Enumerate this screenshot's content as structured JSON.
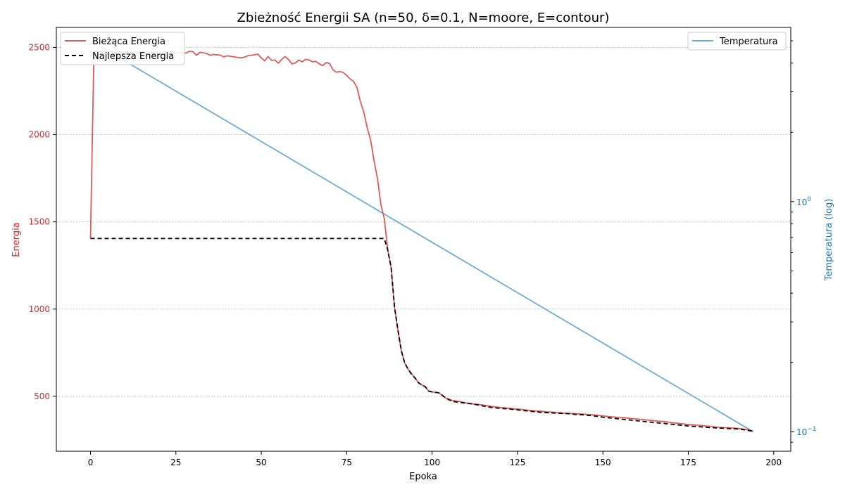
{
  "chart_data": {
    "type": "line",
    "title": "Zbieżność Energii SA (n=50, δ=0.1, N=moore, E=contour)",
    "xlabel": "Epoka",
    "ylabel_left": "Energia",
    "ylabel_right": "Temperatura (log)",
    "xlim": [
      -10,
      205
    ],
    "ylim_left": [
      185,
      2615
    ],
    "ylim_right_log10": [
      -1.085,
      0.757
    ],
    "x_ticks": [
      0,
      25,
      50,
      75,
      100,
      125,
      150,
      175,
      200
    ],
    "x_tick_labels": [
      "0",
      "25",
      "50",
      "75",
      "100",
      "125",
      "150",
      "175",
      "200"
    ],
    "y_ticks_left": [
      500,
      1000,
      1500,
      2000,
      2500
    ],
    "y_tick_labels_left": [
      "500",
      "1000",
      "1500",
      "2000",
      "2500"
    ],
    "y_ticks_right": [
      0.1,
      1
    ],
    "y_tick_labels_right": [
      {
        "base": "10",
        "exp": "−1"
      },
      {
        "base": "10",
        "exp": "0"
      }
    ],
    "grid": "y-dotted",
    "colors": {
      "current": "#e05a5a",
      "best": "#000000",
      "temperature": "#6aaed6",
      "left_axis": "#d62728",
      "right_axis": "#1f77b4",
      "grid": "#b0b0b0"
    },
    "legend_left": {
      "placement": "top-left",
      "items": [
        {
          "label": "Bieżąca Energia",
          "style": "solid",
          "color": "#e05a5a"
        },
        {
          "label": "Najlepsza Energia",
          "style": "dashed",
          "color": "#000000"
        }
      ]
    },
    "legend_right": {
      "placement": "top-right",
      "items": [
        {
          "label": "Temperatura",
          "style": "solid",
          "color": "#6aaed6"
        }
      ]
    },
    "series": [
      {
        "name": "Bieżąca Energia",
        "axis": "left",
        "style": "solid",
        "x": [
          0,
          1,
          2,
          3,
          4,
          5,
          6,
          8,
          10,
          12,
          14,
          16,
          18,
          20,
          22,
          24,
          26,
          28,
          29,
          30,
          31,
          32,
          34,
          35,
          36,
          38,
          39,
          40,
          42,
          44,
          45,
          46,
          48,
          49,
          50,
          51,
          52,
          53,
          54,
          55,
          56,
          57,
          58,
          59,
          60,
          61,
          62,
          63,
          64,
          65,
          66,
          67,
          68,
          69,
          70,
          71,
          72,
          73,
          74,
          75,
          76,
          77,
          78,
          79,
          80,
          81,
          82,
          83,
          84,
          85,
          86,
          87,
          88,
          89,
          90,
          91,
          92,
          93,
          94,
          95,
          96,
          97,
          98,
          99,
          100,
          102,
          104,
          106,
          108,
          110,
          112,
          114,
          116,
          118,
          120,
          122,
          124,
          126,
          128,
          130,
          132,
          134,
          136,
          138,
          140,
          142,
          144,
          146,
          148,
          150,
          152,
          154,
          156,
          158,
          160,
          162,
          164,
          166,
          168,
          170,
          172,
          174,
          176,
          178,
          180,
          182,
          184,
          186,
          188,
          190,
          192,
          194
        ],
        "y": [
          1405,
          2470,
          2480,
          2475,
          2478,
          2470,
          2472,
          2468,
          2470,
          2466,
          2470,
          2468,
          2470,
          2466,
          2468,
          2465,
          2470,
          2468,
          2478,
          2476,
          2456,
          2472,
          2466,
          2455,
          2460,
          2456,
          2446,
          2452,
          2446,
          2440,
          2444,
          2452,
          2458,
          2462,
          2440,
          2424,
          2448,
          2426,
          2428,
          2410,
          2432,
          2448,
          2430,
          2406,
          2412,
          2428,
          2418,
          2432,
          2428,
          2418,
          2420,
          2406,
          2396,
          2414,
          2408,
          2372,
          2358,
          2362,
          2356,
          2340,
          2320,
          2306,
          2270,
          2190,
          2130,
          2040,
          1970,
          1850,
          1750,
          1600,
          1520,
          1340,
          1240,
          1010,
          880,
          760,
          690,
          655,
          630,
          605,
          578,
          565,
          555,
          530,
          525,
          520,
          490,
          476,
          470,
          462,
          456,
          452,
          446,
          440,
          436,
          432,
          428,
          425,
          420,
          416,
          414,
          410,
          408,
          404,
          402,
          400,
          398,
          395,
          392,
          388,
          383,
          380,
          378,
          373,
          370,
          366,
          362,
          358,
          355,
          350,
          345,
          340,
          337,
          334,
          330,
          326,
          322,
          320,
          318,
          315,
          310,
          300
        ]
      },
      {
        "name": "Najlepsza Energia",
        "axis": "left",
        "style": "dashed",
        "x": [
          0,
          86,
          87,
          88,
          89,
          90,
          91,
          92,
          93,
          94,
          95,
          96,
          97,
          98,
          99,
          100,
          102,
          104,
          106,
          108,
          110,
          112,
          114,
          116,
          118,
          120,
          122,
          124,
          126,
          128,
          130,
          132,
          134,
          136,
          138,
          140,
          142,
          144,
          146,
          148,
          150,
          152,
          154,
          156,
          158,
          160,
          162,
          164,
          166,
          168,
          170,
          172,
          174,
          176,
          178,
          180,
          182,
          184,
          186,
          188,
          190,
          192,
          194
        ],
        "y": [
          1405,
          1405,
          1340,
          1240,
          1010,
          880,
          760,
          690,
          655,
          625,
          605,
          578,
          565,
          555,
          530,
          525,
          520,
          490,
          470,
          466,
          460,
          456,
          448,
          440,
          434,
          431,
          428,
          424,
          420,
          416,
          412,
          408,
          406,
          404,
          402,
          400,
          396,
          394,
          390,
          386,
          380,
          376,
          372,
          368,
          364,
          360,
          356,
          352,
          348,
          344,
          340,
          336,
          332,
          328,
          326,
          322,
          320,
          318,
          316,
          314,
          312,
          306,
          300
        ]
      },
      {
        "name": "Temperatura",
        "axis": "right",
        "style": "solid",
        "x": [
          0,
          194
        ],
        "y": [
          5.0,
          0.1
        ]
      }
    ]
  }
}
